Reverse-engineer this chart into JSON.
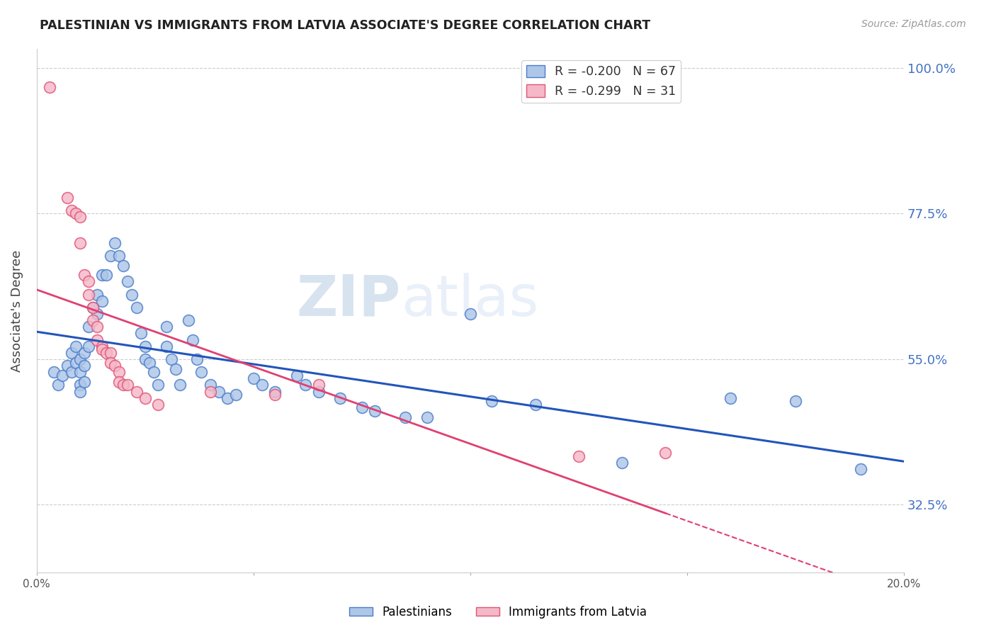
{
  "title": "PALESTINIAN VS IMMIGRANTS FROM LATVIA ASSOCIATE'S DEGREE CORRELATION CHART",
  "source": "Source: ZipAtlas.com",
  "ylabel": "Associate's Degree",
  "yticks": [
    32.5,
    55.0,
    77.5,
    100.0
  ],
  "ytick_labels": [
    "32.5%",
    "55.0%",
    "77.5%",
    "100.0%"
  ],
  "xmin": 0.0,
  "xmax": 20.0,
  "ymin": 22.0,
  "ymax": 103.0,
  "blue_R": -0.2,
  "blue_N": 67,
  "pink_R": -0.299,
  "pink_N": 31,
  "legend_label_blue": "Palestinians",
  "legend_label_pink": "Immigrants from Latvia",
  "watermark_zip": "ZIP",
  "watermark_atlas": "atlas",
  "blue_color": "#aec6e8",
  "pink_color": "#f5b8c8",
  "blue_edge_color": "#4a7cc9",
  "pink_edge_color": "#e05575",
  "blue_line_color": "#2255bb",
  "pink_line_color": "#e04070",
  "blue_scatter": [
    [
      0.4,
      53.0
    ],
    [
      0.5,
      51.0
    ],
    [
      0.6,
      52.5
    ],
    [
      0.7,
      54.0
    ],
    [
      0.8,
      56.0
    ],
    [
      0.8,
      53.0
    ],
    [
      0.9,
      57.0
    ],
    [
      0.9,
      54.5
    ],
    [
      1.0,
      55.0
    ],
    [
      1.0,
      53.0
    ],
    [
      1.0,
      51.0
    ],
    [
      1.0,
      50.0
    ],
    [
      1.1,
      56.0
    ],
    [
      1.1,
      54.0
    ],
    [
      1.1,
      51.5
    ],
    [
      1.2,
      60.0
    ],
    [
      1.2,
      57.0
    ],
    [
      1.3,
      63.0
    ],
    [
      1.4,
      65.0
    ],
    [
      1.4,
      62.0
    ],
    [
      1.5,
      68.0
    ],
    [
      1.5,
      64.0
    ],
    [
      1.6,
      68.0
    ],
    [
      1.7,
      71.0
    ],
    [
      1.8,
      73.0
    ],
    [
      1.9,
      71.0
    ],
    [
      2.0,
      69.5
    ],
    [
      2.1,
      67.0
    ],
    [
      2.2,
      65.0
    ],
    [
      2.3,
      63.0
    ],
    [
      2.4,
      59.0
    ],
    [
      2.5,
      57.0
    ],
    [
      2.5,
      55.0
    ],
    [
      2.6,
      54.5
    ],
    [
      2.7,
      53.0
    ],
    [
      2.8,
      51.0
    ],
    [
      3.0,
      60.0
    ],
    [
      3.0,
      57.0
    ],
    [
      3.1,
      55.0
    ],
    [
      3.2,
      53.5
    ],
    [
      3.3,
      51.0
    ],
    [
      3.5,
      61.0
    ],
    [
      3.6,
      58.0
    ],
    [
      3.7,
      55.0
    ],
    [
      3.8,
      53.0
    ],
    [
      4.0,
      51.0
    ],
    [
      4.2,
      50.0
    ],
    [
      4.4,
      49.0
    ],
    [
      4.6,
      49.5
    ],
    [
      5.0,
      52.0
    ],
    [
      5.2,
      51.0
    ],
    [
      5.5,
      50.0
    ],
    [
      6.0,
      52.5
    ],
    [
      6.2,
      51.0
    ],
    [
      6.5,
      50.0
    ],
    [
      7.0,
      49.0
    ],
    [
      7.5,
      47.5
    ],
    [
      7.8,
      47.0
    ],
    [
      8.5,
      46.0
    ],
    [
      9.0,
      46.0
    ],
    [
      10.0,
      62.0
    ],
    [
      10.5,
      48.5
    ],
    [
      11.5,
      48.0
    ],
    [
      13.5,
      39.0
    ],
    [
      16.0,
      49.0
    ],
    [
      17.5,
      48.5
    ],
    [
      19.0,
      38.0
    ]
  ],
  "pink_scatter": [
    [
      0.3,
      97.0
    ],
    [
      0.7,
      80.0
    ],
    [
      0.8,
      78.0
    ],
    [
      0.9,
      77.5
    ],
    [
      1.0,
      77.0
    ],
    [
      1.0,
      73.0
    ],
    [
      1.1,
      68.0
    ],
    [
      1.2,
      67.0
    ],
    [
      1.2,
      65.0
    ],
    [
      1.3,
      63.0
    ],
    [
      1.3,
      61.0
    ],
    [
      1.4,
      60.0
    ],
    [
      1.4,
      58.0
    ],
    [
      1.5,
      57.0
    ],
    [
      1.5,
      56.5
    ],
    [
      1.6,
      56.0
    ],
    [
      1.7,
      56.0
    ],
    [
      1.7,
      54.5
    ],
    [
      1.8,
      54.0
    ],
    [
      1.9,
      53.0
    ],
    [
      1.9,
      51.5
    ],
    [
      2.0,
      51.0
    ],
    [
      2.1,
      51.0
    ],
    [
      2.3,
      50.0
    ],
    [
      2.5,
      49.0
    ],
    [
      2.8,
      48.0
    ],
    [
      4.0,
      50.0
    ],
    [
      5.5,
      49.5
    ],
    [
      6.5,
      51.0
    ],
    [
      12.5,
      40.0
    ],
    [
      14.5,
      40.5
    ]
  ],
  "pink_solid_end_x": 14.5,
  "xtick_positions": [
    0.0,
    5.0,
    10.0,
    15.0,
    20.0
  ],
  "xtick_labels": [
    "0.0%",
    "",
    "",
    "",
    "20.0%"
  ]
}
